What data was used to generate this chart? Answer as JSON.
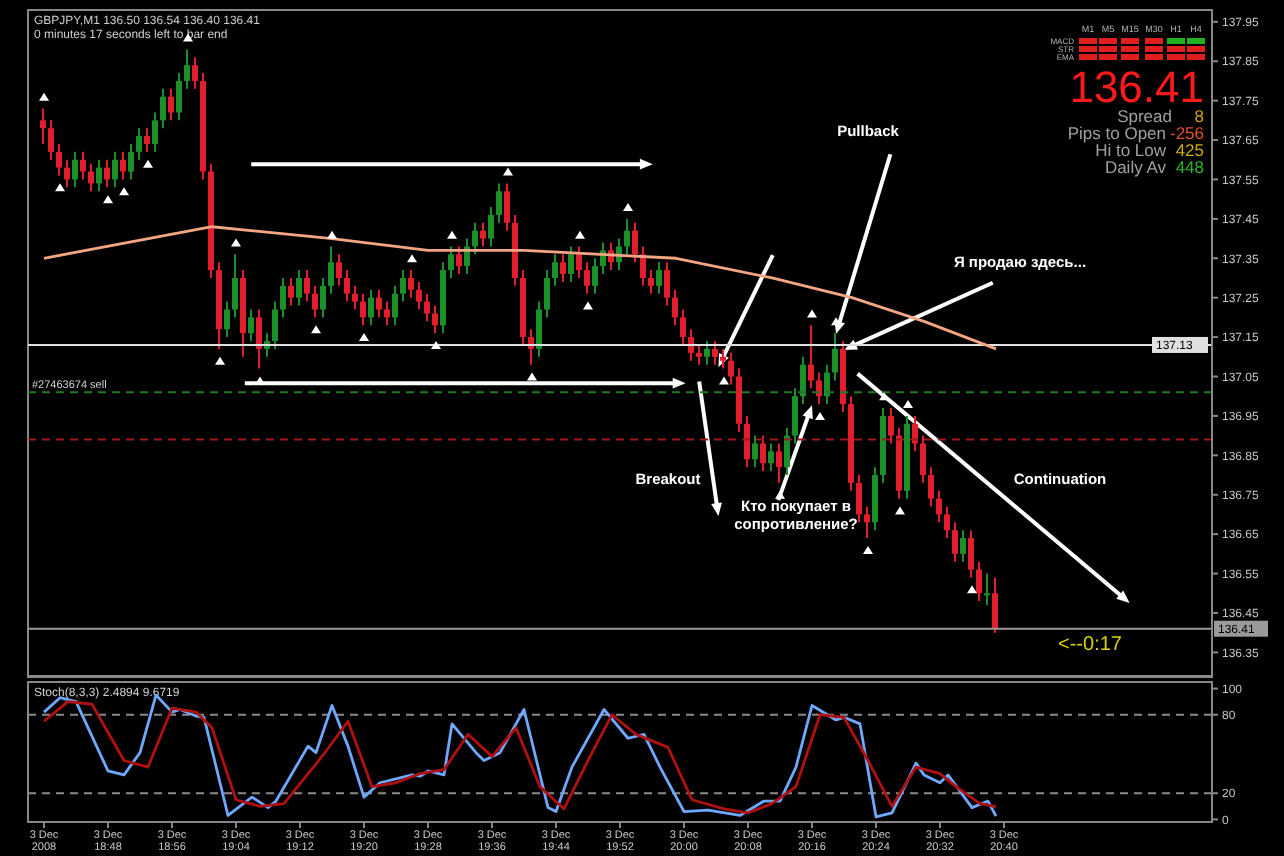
{
  "chart_data": [
    {
      "type": "candlestick",
      "title": "GBPJPY,M1 136.50 136.54 136.40 136.41",
      "subtitle": "0 minutes 17 seconds left to bar end",
      "x": [
        "2008-12-03T18:40",
        "2008-12-03T18:41",
        "2008-12-03T18:42",
        "2008-12-03T18:43",
        "2008-12-03T18:44",
        "2008-12-03T18:45",
        "2008-12-03T18:46",
        "2008-12-03T18:47",
        "2008-12-03T18:48",
        "2008-12-03T18:49",
        "2008-12-03T18:50",
        "2008-12-03T18:51",
        "2008-12-03T18:52",
        "2008-12-03T18:53",
        "2008-12-03T18:54",
        "2008-12-03T18:55",
        "2008-12-03T18:56",
        "2008-12-03T18:57",
        "2008-12-03T18:58",
        "2008-12-03T18:59",
        "2008-12-03T19:00",
        "2008-12-03T19:01",
        "2008-12-03T19:02",
        "2008-12-03T19:03",
        "2008-12-03T19:04",
        "2008-12-03T19:05",
        "2008-12-03T19:06",
        "2008-12-03T19:07",
        "2008-12-03T19:08",
        "2008-12-03T19:09",
        "2008-12-03T19:10",
        "2008-12-03T19:11",
        "2008-12-03T19:12",
        "2008-12-03T19:13",
        "2008-12-03T19:14",
        "2008-12-03T19:15",
        "2008-12-03T19:16",
        "2008-12-03T19:17",
        "2008-12-03T19:18",
        "2008-12-03T19:19",
        "2008-12-03T19:20",
        "2008-12-03T19:21",
        "2008-12-03T19:22",
        "2008-12-03T19:23",
        "2008-12-03T19:24",
        "2008-12-03T19:25",
        "2008-12-03T19:26",
        "2008-12-03T19:27",
        "2008-12-03T19:28",
        "2008-12-03T19:29",
        "2008-12-03T19:30",
        "2008-12-03T19:31",
        "2008-12-03T19:32",
        "2008-12-03T19:33",
        "2008-12-03T19:34",
        "2008-12-03T19:35",
        "2008-12-03T19:36",
        "2008-12-03T19:37",
        "2008-12-03T19:38",
        "2008-12-03T19:39",
        "2008-12-03T19:40",
        "2008-12-03T19:41",
        "2008-12-03T19:42",
        "2008-12-03T19:43",
        "2008-12-03T19:44",
        "2008-12-03T19:45",
        "2008-12-03T19:46",
        "2008-12-03T19:47",
        "2008-12-03T19:48",
        "2008-12-03T19:49",
        "2008-12-03T19:50",
        "2008-12-03T19:51",
        "2008-12-03T19:52",
        "2008-12-03T19:53",
        "2008-12-03T19:54",
        "2008-12-03T19:55",
        "2008-12-03T19:56",
        "2008-12-03T19:57",
        "2008-12-03T19:58",
        "2008-12-03T19:59",
        "2008-12-03T20:00",
        "2008-12-03T20:01",
        "2008-12-03T20:02",
        "2008-12-03T20:03",
        "2008-12-03T20:04",
        "2008-12-03T20:05",
        "2008-12-03T20:06",
        "2008-12-03T20:07",
        "2008-12-03T20:08",
        "2008-12-03T20:09",
        "2008-12-03T20:10",
        "2008-12-03T20:11",
        "2008-12-03T20:12",
        "2008-12-03T20:13",
        "2008-12-03T20:14",
        "2008-12-03T20:15",
        "2008-12-03T20:16",
        "2008-12-03T20:17",
        "2008-12-03T20:18",
        "2008-12-03T20:19",
        "2008-12-03T20:20",
        "2008-12-03T20:21",
        "2008-12-03T20:22",
        "2008-12-03T20:23",
        "2008-12-03T20:24",
        "2008-12-03T20:25",
        "2008-12-03T20:26",
        "2008-12-03T20:27",
        "2008-12-03T20:28",
        "2008-12-03T20:29",
        "2008-12-03T20:30",
        "2008-12-03T20:31",
        "2008-12-03T20:32",
        "2008-12-03T20:33",
        "2008-12-03T20:34",
        "2008-12-03T20:35",
        "2008-12-03T20:36",
        "2008-12-03T20:37",
        "2008-12-03T20:38",
        "2008-12-03T20:39"
      ],
      "ohlc": [
        [
          137.7,
          137.73,
          137.64,
          137.68
        ],
        [
          137.68,
          137.7,
          137.6,
          137.62
        ],
        [
          137.62,
          137.64,
          137.56,
          137.58
        ],
        [
          137.58,
          137.6,
          137.53,
          137.55
        ],
        [
          137.55,
          137.62,
          137.53,
          137.6
        ],
        [
          137.6,
          137.62,
          137.55,
          137.57
        ],
        [
          137.57,
          137.59,
          137.52,
          137.54
        ],
        [
          137.54,
          137.6,
          137.52,
          137.58
        ],
        [
          137.58,
          137.6,
          137.53,
          137.55
        ],
        [
          137.55,
          137.62,
          137.53,
          137.6
        ],
        [
          137.6,
          137.62,
          137.55,
          137.57
        ],
        [
          137.57,
          137.64,
          137.55,
          137.62
        ],
        [
          137.62,
          137.68,
          137.6,
          137.66
        ],
        [
          137.66,
          137.68,
          137.62,
          137.64
        ],
        [
          137.64,
          137.72,
          137.62,
          137.7
        ],
        [
          137.7,
          137.78,
          137.68,
          137.76
        ],
        [
          137.76,
          137.78,
          137.7,
          137.72
        ],
        [
          137.72,
          137.82,
          137.7,
          137.8
        ],
        [
          137.8,
          137.88,
          137.78,
          137.84
        ],
        [
          137.84,
          137.86,
          137.78,
          137.8
        ],
        [
          137.8,
          137.82,
          137.55,
          137.57
        ],
        [
          137.57,
          137.59,
          137.3,
          137.32
        ],
        [
          137.32,
          137.34,
          137.12,
          137.17
        ],
        [
          137.17,
          137.24,
          137.15,
          137.22
        ],
        [
          137.22,
          137.36,
          137.2,
          137.3
        ],
        [
          137.3,
          137.32,
          137.1,
          137.16
        ],
        [
          137.16,
          137.22,
          137.14,
          137.2
        ],
        [
          137.2,
          137.22,
          137.07,
          137.12
        ],
        [
          137.12,
          137.16,
          137.1,
          137.14
        ],
        [
          137.14,
          137.24,
          137.12,
          137.22
        ],
        [
          137.22,
          137.3,
          137.2,
          137.28
        ],
        [
          137.28,
          137.3,
          137.23,
          137.25
        ],
        [
          137.25,
          137.32,
          137.23,
          137.3
        ],
        [
          137.3,
          137.32,
          137.24,
          137.26
        ],
        [
          137.26,
          137.28,
          137.2,
          137.22
        ],
        [
          137.22,
          137.3,
          137.2,
          137.28
        ],
        [
          137.28,
          137.38,
          137.26,
          137.34
        ],
        [
          137.34,
          137.36,
          137.28,
          137.3
        ],
        [
          137.3,
          137.32,
          137.24,
          137.26
        ],
        [
          137.26,
          137.28,
          137.22,
          137.24
        ],
        [
          137.24,
          137.26,
          137.18,
          137.2
        ],
        [
          137.2,
          137.27,
          137.18,
          137.25
        ],
        [
          137.25,
          137.27,
          137.2,
          137.22
        ],
        [
          137.22,
          137.24,
          137.18,
          137.2
        ],
        [
          137.2,
          137.28,
          137.18,
          137.26
        ],
        [
          137.26,
          137.32,
          137.24,
          137.3
        ],
        [
          137.3,
          137.32,
          137.25,
          137.27
        ],
        [
          137.27,
          137.29,
          137.22,
          137.24
        ],
        [
          137.24,
          137.26,
          137.19,
          137.21
        ],
        [
          137.21,
          137.23,
          137.16,
          137.18
        ],
        [
          137.18,
          137.34,
          137.16,
          137.32
        ],
        [
          137.32,
          137.38,
          137.3,
          137.36
        ],
        [
          137.36,
          137.38,
          137.31,
          137.33
        ],
        [
          137.33,
          137.4,
          137.31,
          137.38
        ],
        [
          137.38,
          137.44,
          137.36,
          137.42
        ],
        [
          137.42,
          137.44,
          137.38,
          137.4
        ],
        [
          137.4,
          137.48,
          137.38,
          137.46
        ],
        [
          137.46,
          137.54,
          137.44,
          137.52
        ],
        [
          137.52,
          137.54,
          137.42,
          137.44
        ],
        [
          137.44,
          137.46,
          137.28,
          137.3
        ],
        [
          137.3,
          137.32,
          137.13,
          137.15
        ],
        [
          137.15,
          137.17,
          137.08,
          137.12
        ],
        [
          137.12,
          137.24,
          137.1,
          137.22
        ],
        [
          137.22,
          137.32,
          137.2,
          137.3
        ],
        [
          137.3,
          137.36,
          137.28,
          137.34
        ],
        [
          137.34,
          137.36,
          137.29,
          137.31
        ],
        [
          137.31,
          137.38,
          137.29,
          137.36
        ],
        [
          137.36,
          137.38,
          137.3,
          137.32
        ],
        [
          137.32,
          137.34,
          137.26,
          137.28
        ],
        [
          137.28,
          137.35,
          137.26,
          137.33
        ],
        [
          137.33,
          137.39,
          137.31,
          137.37
        ],
        [
          137.37,
          137.39,
          137.32,
          137.34
        ],
        [
          137.34,
          137.4,
          137.32,
          137.38
        ],
        [
          137.38,
          137.45,
          137.36,
          137.42
        ],
        [
          137.42,
          137.44,
          137.34,
          137.36
        ],
        [
          137.36,
          137.38,
          137.28,
          137.3
        ],
        [
          137.3,
          137.32,
          137.26,
          137.28
        ],
        [
          137.28,
          137.34,
          137.26,
          137.32
        ],
        [
          137.32,
          137.34,
          137.23,
          137.25
        ],
        [
          137.25,
          137.27,
          137.18,
          137.2
        ],
        [
          137.2,
          137.22,
          137.13,
          137.15
        ],
        [
          137.15,
          137.17,
          137.09,
          137.11
        ],
        [
          137.11,
          137.13,
          137.08,
          137.1
        ],
        [
          137.1,
          137.14,
          137.08,
          137.12
        ],
        [
          137.12,
          137.14,
          137.08,
          137.1
        ],
        [
          137.1,
          137.12,
          137.07,
          137.09
        ],
        [
          137.09,
          137.11,
          137.03,
          137.05
        ],
        [
          137.05,
          137.07,
          136.91,
          136.93
        ],
        [
          136.93,
          136.95,
          136.82,
          136.84
        ],
        [
          136.84,
          136.9,
          136.82,
          136.88
        ],
        [
          136.88,
          136.9,
          136.81,
          136.83
        ],
        [
          136.83,
          136.88,
          136.81,
          136.86
        ],
        [
          136.86,
          136.88,
          136.78,
          136.82
        ],
        [
          136.82,
          136.92,
          136.8,
          136.9
        ],
        [
          136.9,
          137.02,
          136.88,
          137.0
        ],
        [
          137.0,
          137.1,
          136.98,
          137.08
        ],
        [
          137.08,
          137.18,
          137.02,
          137.04
        ],
        [
          137.04,
          137.06,
          136.98,
          137.0
        ],
        [
          137.0,
          137.08,
          136.98,
          137.06
        ],
        [
          137.06,
          137.16,
          137.04,
          137.12
        ],
        [
          137.12,
          137.14,
          136.96,
          136.98
        ],
        [
          136.98,
          137.0,
          136.76,
          136.78
        ],
        [
          136.78,
          136.8,
          136.68,
          136.7
        ],
        [
          136.7,
          136.72,
          136.64,
          136.68
        ],
        [
          136.68,
          136.82,
          136.66,
          136.8
        ],
        [
          136.8,
          136.97,
          136.78,
          136.95
        ],
        [
          136.95,
          136.97,
          136.88,
          136.9
        ],
        [
          136.9,
          136.92,
          136.74,
          136.76
        ],
        [
          136.76,
          136.95,
          136.74,
          136.93
        ],
        [
          136.93,
          136.95,
          136.86,
          136.88
        ],
        [
          136.88,
          136.9,
          136.78,
          136.8
        ],
        [
          136.8,
          136.82,
          136.72,
          136.74
        ],
        [
          136.74,
          136.76,
          136.68,
          136.7
        ],
        [
          136.7,
          136.72,
          136.64,
          136.66
        ],
        [
          136.66,
          136.68,
          136.58,
          136.6
        ],
        [
          136.6,
          136.66,
          136.58,
          136.64
        ],
        [
          136.64,
          136.66,
          136.54,
          136.56
        ],
        [
          136.56,
          136.58,
          136.48,
          136.5
        ],
        [
          136.5,
          136.55,
          136.47,
          136.5
        ],
        [
          136.5,
          136.54,
          136.4,
          136.41
        ]
      ],
      "colors": [
        "#e31e2c",
        "#e31e2c",
        "#e31e2c",
        "#e31e2c",
        "#1d8f2a",
        "#e31e2c",
        "#e31e2c",
        "#1d8f2a",
        "#e31e2c",
        "#1d8f2a",
        "#e31e2c",
        "#1d8f2a",
        "#1d8f2a",
        "#e31e2c",
        "#1d8f2a",
        "#1d8f2a",
        "#e31e2c",
        "#1d8f2a",
        "#1d8f2a",
        "#e31e2c",
        "#e31e2c",
        "#e31e2c",
        "#e31e2c",
        "#1d8f2a",
        "#1d8f2a",
        "#e31e2c",
        "#1d8f2a",
        "#e31e2c",
        "#1d8f2a",
        "#1d8f2a",
        "#1d8f2a",
        "#e31e2c",
        "#1d8f2a",
        "#e31e2c",
        "#e31e2c",
        "#1d8f2a",
        "#1d8f2a",
        "#e31e2c",
        "#e31e2c",
        "#e31e2c",
        "#e31e2c",
        "#1d8f2a",
        "#e31e2c",
        "#e31e2c",
        "#1d8f2a",
        "#1d8f2a",
        "#e31e2c",
        "#e31e2c",
        "#e31e2c",
        "#e31e2c",
        "#1d8f2a",
        "#1d8f2a",
        "#e31e2c",
        "#1d8f2a",
        "#1d8f2a",
        "#e31e2c",
        "#1d8f2a",
        "#1d8f2a",
        "#e31e2c",
        "#e31e2c",
        "#e31e2c",
        "#e31e2c",
        "#1d8f2a",
        "#1d8f2a",
        "#1d8f2a",
        "#e31e2c",
        "#1d8f2a",
        "#e31e2c",
        "#e31e2c",
        "#1d8f2a",
        "#1d8f2a",
        "#e31e2c",
        "#1d8f2a",
        "#1d8f2a",
        "#e31e2c",
        "#e31e2c",
        "#e31e2c",
        "#1d8f2a",
        "#e31e2c",
        "#e31e2c",
        "#e31e2c",
        "#e31e2c",
        "#e31e2c",
        "#1d8f2a",
        "#e31e2c",
        "#e31e2c",
        "#e31e2c",
        "#e31e2c",
        "#e31e2c",
        "#1d8f2a",
        "#e31e2c",
        "#1d8f2a",
        "#e31e2c",
        "#1d8f2a",
        "#1d8f2a",
        "#1d8f2a",
        "#e31e2c",
        "#e31e2c",
        "#1d8f2a",
        "#1d8f2a",
        "#e31e2c",
        "#e31e2c",
        "#e31e2c",
        "#e31e2c",
        "#1d8f2a",
        "#1d8f2a",
        "#e31e2c",
        "#e31e2c",
        "#1d8f2a",
        "#e31e2c",
        "#e31e2c",
        "#e31e2c",
        "#e31e2c",
        "#e31e2c",
        "#e31e2c",
        "#1d8f2a",
        "#e31e2c",
        "#e31e2c",
        "#1d8f2a",
        "#e31e2c"
      ],
      "series": [
        {
          "type": "line",
          "color": "#f4a582",
          "x": [
            "2008-12-03T18:40",
            "2008-12-03T19:01",
            "2008-12-03T19:16",
            "2008-12-03T19:28",
            "2008-12-03T19:40",
            "2008-12-03T19:59",
            "2008-12-03T20:11",
            "2008-12-03T20:21",
            "2008-12-03T20:30",
            "2008-12-03T20:39"
          ],
          "values": [
            137.35,
            137.43,
            137.4,
            137.37,
            137.37,
            137.35,
            137.3,
            137.25,
            137.19,
            137.12
          ]
        },
        {
          "type": "scatter",
          "color": "#ffffff",
          "marker": "triangle",
          "x": [
            "2008-12-03T18:40",
            "2008-12-03T18:58",
            "2008-12-03T19:04",
            "2008-12-03T19:16",
            "2008-12-03T19:26",
            "2008-12-03T19:31",
            "2008-12-03T19:38",
            "2008-12-03T19:47",
            "2008-12-03T19:53",
            "2008-12-03T20:16",
            "2008-12-03T20:19",
            "2008-12-03T20:25",
            "2008-12-03T20:28"
          ],
          "values": [
            137.76,
            137.91,
            137.39,
            137.41,
            137.35,
            137.41,
            137.57,
            137.41,
            137.48,
            137.21,
            137.19,
            137.0,
            136.98
          ]
        },
        {
          "type": "scatter",
          "color": "#ffffff",
          "marker": "triangle",
          "x": [
            "2008-12-03T18:42",
            "2008-12-03T18:48",
            "2008-12-03T18:50",
            "2008-12-03T18:53",
            "2008-12-03T19:02",
            "2008-12-03T19:07",
            "2008-12-03T19:14",
            "2008-12-03T19:20",
            "2008-12-03T19:29",
            "2008-12-03T19:41",
            "2008-12-03T19:48",
            "2008-12-03T20:05",
            "2008-12-03T20:12",
            "2008-12-03T20:17",
            "2008-12-03T20:23",
            "2008-12-03T20:27",
            "2008-12-03T20:36"
          ],
          "values": [
            137.53,
            137.5,
            137.52,
            137.59,
            137.09,
            137.04,
            137.17,
            137.15,
            137.13,
            137.05,
            137.23,
            137.04,
            136.75,
            136.95,
            136.61,
            136.71,
            136.51
          ]
        }
      ],
      "xlim": [
        "2008-12-03T18:38",
        "2008-12-03T21:06"
      ],
      "ylim": [
        136.29,
        137.98
      ],
      "yticks": [
        136.35,
        136.45,
        136.55,
        136.65,
        136.75,
        136.85,
        136.95,
        137.05,
        137.15,
        137.25,
        137.35,
        137.45,
        137.55,
        137.65,
        137.75,
        137.85,
        137.95
      ],
      "tick_labels": "y",
      "ref_lines": [
        {
          "axis": "y",
          "value": 137.13,
          "label": "137.13",
          "color": "#e0e0e0",
          "line_style": "solid"
        },
        {
          "axis": "y",
          "value": 137.01,
          "label": "#27463674 sell",
          "color": "#1f7a1f",
          "line_style": "dashed"
        },
        {
          "axis": "y",
          "value": 136.89,
          "color": "#a01818",
          "line_style": "dashed"
        },
        {
          "axis": "y",
          "value": 136.41,
          "label": "136.41",
          "color": "#9a9a9a",
          "line_style": "solid"
        }
      ],
      "annotations": [
        {
          "text": "Pullback",
          "x": "2008-12-03T20:19",
          "y": 137.16
        },
        {
          "text": "Я продаю здесь...",
          "x": "2008-12-03T20:20",
          "y": 137.12
        },
        "Breakout",
        {
          "text": "Кто покупает в сопротивление?",
          "x": "2008-12-03T20:16",
          "y": 136.98
        },
        "Continuation",
        "M1",
        "M5",
        "M15",
        "M30",
        "H1",
        "H4",
        "MACD",
        "STR",
        "EMA",
        "136.41",
        "Spread",
        "8",
        "Pips to Open",
        "-256",
        "Hi to Low",
        "425",
        "Daily Av",
        "448",
        "<--0:17"
      ]
    },
    {
      "type": "line",
      "title": "Stoch(8,3,3) 2.4894 9.6719",
      "series": [
        {
          "color": "#6fa8ff",
          "x": [
            "2008-12-03T18:40",
            "2008-12-03T18:42",
            "2008-12-03T18:44",
            "2008-12-03T18:48",
            "2008-12-03T18:50",
            "2008-12-03T18:52",
            "2008-12-03T18:54",
            "2008-12-03T18:56",
            "2008-12-03T18:57",
            "2008-12-03T18:59",
            "2008-12-03T19:00",
            "2008-12-03T19:03",
            "2008-12-03T19:06",
            "2008-12-03T19:08",
            "2008-12-03T19:09",
            "2008-12-03T19:13",
            "2008-12-03T19:14",
            "2008-12-03T19:16",
            "2008-12-03T19:18",
            "2008-12-03T19:20",
            "2008-12-03T19:22",
            "2008-12-03T19:26",
            "2008-12-03T19:27",
            "2008-12-03T19:28",
            "2008-12-03T19:30",
            "2008-12-03T19:31",
            "2008-12-03T19:34",
            "2008-12-03T19:35",
            "2008-12-03T19:37",
            "2008-12-03T19:40",
            "2008-12-03T19:43",
            "2008-12-03T19:44",
            "2008-12-03T19:46",
            "2008-12-03T19:50",
            "2008-12-03T19:53",
            "2008-12-03T19:55",
            "2008-12-03T19:57",
            "2008-12-03T20:00",
            "2008-12-03T20:03",
            "2008-12-03T20:07",
            "2008-12-03T20:10",
            "2008-12-03T20:12",
            "2008-12-03T20:14",
            "2008-12-03T20:16",
            "2008-12-03T20:19",
            "2008-12-03T20:20",
            "2008-12-03T20:22",
            "2008-12-03T20:24",
            "2008-12-03T20:26",
            "2008-12-03T20:29",
            "2008-12-03T20:30",
            "2008-12-03T20:32",
            "2008-12-03T20:33",
            "2008-12-03T20:36",
            "2008-12-03T20:38",
            "2008-12-03T20:39"
          ],
          "values": [
            82,
            93,
            90,
            37,
            34,
            51,
            95,
            82,
            84,
            79,
            78,
            3,
            17,
            9,
            14,
            56,
            51,
            87,
            56,
            17,
            28,
            34,
            33,
            37,
            34,
            73,
            51,
            45,
            51,
            84,
            9,
            6,
            40,
            84,
            62,
            65,
            40,
            6,
            7,
            3,
            14,
            14,
            40,
            87,
            76,
            78,
            73,
            2,
            5,
            43,
            34,
            28,
            34,
            9,
            14,
            2.4894
          ]
        },
        {
          "color": "#b01010",
          "x": [
            "2008-12-03T18:40",
            "2008-12-03T18:43",
            "2008-12-03T18:46",
            "2008-12-03T18:50",
            "2008-12-03T18:53",
            "2008-12-03T18:56",
            "2008-12-03T18:59",
            "2008-12-03T19:01",
            "2008-12-03T19:04",
            "2008-12-03T19:07",
            "2008-12-03T19:10",
            "2008-12-03T19:15",
            "2008-12-03T19:18",
            "2008-12-03T19:21",
            "2008-12-03T19:24",
            "2008-12-03T19:27",
            "2008-12-03T19:30",
            "2008-12-03T19:33",
            "2008-12-03T19:36",
            "2008-12-03T19:39",
            "2008-12-03T19:42",
            "2008-12-03T19:45",
            "2008-12-03T19:48",
            "2008-12-03T19:51",
            "2008-12-03T19:54",
            "2008-12-03T19:58",
            "2008-12-03T20:01",
            "2008-12-03T20:05",
            "2008-12-03T20:08",
            "2008-12-03T20:11",
            "2008-12-03T20:14",
            "2008-12-03T20:17",
            "2008-12-03T20:20",
            "2008-12-03T20:23",
            "2008-12-03T20:26",
            "2008-12-03T20:29",
            "2008-12-03T20:32",
            "2008-12-03T20:34",
            "2008-12-03T20:37",
            "2008-12-03T20:39"
          ],
          "values": [
            75,
            90,
            88,
            45,
            40,
            85,
            82,
            70,
            15,
            10,
            12,
            50,
            75,
            25,
            28,
            35,
            38,
            65,
            48,
            70,
            25,
            8,
            45,
            80,
            65,
            55,
            15,
            8,
            5,
            12,
            25,
            80,
            78,
            45,
            10,
            40,
            35,
            25,
            12,
            9.6719
          ]
        }
      ],
      "xlim": [
        "2008-12-03T18:38",
        "2008-12-03T21:06"
      ],
      "xticks": [
        {
          "value": "2008-12-03T18:40",
          "label": "3 Dec 2008"
        },
        {
          "value": "2008-12-03T18:48",
          "label": "3 Dec 18:48"
        },
        {
          "value": "2008-12-03T18:56",
          "label": "3 Dec 18:56"
        },
        {
          "value": "2008-12-03T19:04",
          "label": "3 Dec 19:04"
        },
        {
          "value": "2008-12-03T19:12",
          "label": "3 Dec 19:12"
        },
        {
          "value": "2008-12-03T19:20",
          "label": "3 Dec 19:20"
        },
        {
          "value": "2008-12-03T19:28",
          "label": "3 Dec 19:28"
        },
        {
          "value": "2008-12-03T19:36",
          "label": "3 Dec 19:36"
        },
        {
          "value": "2008-12-03T19:44",
          "label": "3 Dec 19:44"
        },
        {
          "value": "2008-12-03T19:52",
          "label": "3 Dec 19:52"
        },
        {
          "value": "2008-12-03T20:00",
          "label": "3 Dec 20:00"
        },
        {
          "value": "2008-12-03T20:08",
          "label": "3 Dec 20:08"
        },
        {
          "value": "2008-12-03T20:16",
          "label": "3 Dec 20:16"
        },
        {
          "value": "2008-12-03T20:24",
          "label": "3 Dec 20:24"
        },
        {
          "value": "2008-12-03T20:32",
          "label": "3 Dec 20:32"
        },
        {
          "value": "2008-12-03T20:40",
          "label": "3 Dec 20:40"
        }
      ],
      "ylim": [
        -2,
        105
      ],
      "yticks": [
        0,
        20,
        80,
        100
      ],
      "ref_lines": [
        {
          "axis": "y",
          "value": 80,
          "color": "#8a8a8a",
          "line_style": "dashed"
        },
        {
          "axis": "y",
          "value": 20,
          "color": "#8a8a8a",
          "line_style": "dashed"
        }
      ]
    }
  ]
}
